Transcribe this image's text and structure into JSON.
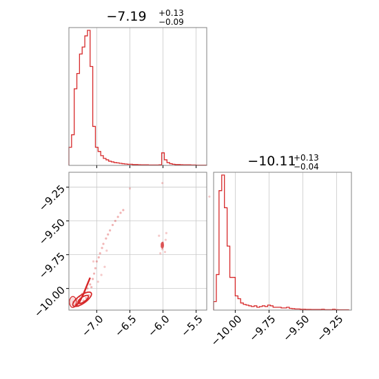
{
  "colors": {
    "series": "#d62728",
    "grid": "#c8c8c8",
    "frame": "#808080"
  },
  "chart_data": [
    {
      "type": "histogram",
      "panel": "marginal-param-1",
      "title": {
        "median": "−7.19",
        "plus": "+0.13",
        "minus": "−0.09"
      },
      "xlim": [
        -7.42,
        -5.34
      ],
      "grid": true,
      "bins": [
        [
          -7.42,
          0.13
        ],
        [
          -7.38,
          0.22
        ],
        [
          -7.34,
          0.55
        ],
        [
          -7.3,
          0.66
        ],
        [
          -7.26,
          0.8
        ],
        [
          -7.22,
          0.85
        ],
        [
          -7.18,
          0.93
        ],
        [
          -7.14,
          0.97
        ],
        [
          -7.1,
          0.71
        ],
        [
          -7.06,
          0.28
        ],
        [
          -7.02,
          0.13
        ],
        [
          -6.98,
          0.1
        ],
        [
          -6.94,
          0.07
        ],
        [
          -6.9,
          0.05
        ],
        [
          -6.86,
          0.04
        ],
        [
          -6.82,
          0.03
        ],
        [
          -6.78,
          0.025
        ],
        [
          -6.74,
          0.02
        ],
        [
          -6.7,
          0.018
        ],
        [
          -6.66,
          0.015
        ],
        [
          -6.62,
          0.012
        ],
        [
          -6.58,
          0.01
        ],
        [
          -6.54,
          0.008
        ],
        [
          -6.5,
          0.008
        ],
        [
          -6.46,
          0.006
        ],
        [
          -6.42,
          0.006
        ],
        [
          -6.38,
          0.005
        ],
        [
          -6.34,
          0.004
        ],
        [
          -6.3,
          0.004
        ],
        [
          -6.26,
          0.004
        ],
        [
          -6.22,
          0.003
        ],
        [
          -6.18,
          0.003
        ],
        [
          -6.14,
          0.003
        ],
        [
          -6.1,
          0.003
        ],
        [
          -6.06,
          0.004
        ],
        [
          -6.02,
          0.09
        ],
        [
          -5.98,
          0.04
        ],
        [
          -5.94,
          0.02
        ],
        [
          -5.9,
          0.012
        ],
        [
          -5.86,
          0.008
        ],
        [
          -5.82,
          0.006
        ],
        [
          -5.78,
          0.006
        ],
        [
          -5.74,
          0.005
        ],
        [
          -5.7,
          0.004
        ],
        [
          -5.66,
          0.004
        ],
        [
          -5.62,
          0.004
        ],
        [
          -5.58,
          0.003
        ],
        [
          -5.54,
          0.003
        ],
        [
          -5.5,
          0.002
        ],
        [
          -5.46,
          0.002
        ],
        [
          -5.42,
          0.002
        ],
        [
          -5.38,
          0.002
        ]
      ]
    },
    {
      "type": "scatter",
      "panel": "joint-2d",
      "xlim": [
        -7.42,
        -5.34
      ],
      "ylim": [
        -10.16,
        -9.14
      ],
      "xticks": [
        -7.0,
        -6.5,
        -6.0,
        -5.5
      ],
      "xtick_labels": [
        "−7.0",
        "−6.5",
        "−6.0",
        "−5.5"
      ],
      "yticks": [
        -10.0,
        -9.75,
        -9.5,
        -9.25
      ],
      "ytick_labels": [
        "−10.00",
        "−9.75",
        "−9.50",
        "−9.25"
      ],
      "grid": true,
      "points": [
        [
          -7.35,
          -10.1
        ],
        [
          -7.32,
          -10.12
        ],
        [
          -7.3,
          -10.08
        ],
        [
          -7.28,
          -10.13
        ],
        [
          -7.26,
          -10.06
        ],
        [
          -7.24,
          -10.11
        ],
        [
          -7.22,
          -10.04
        ],
        [
          -7.2,
          -10.09
        ],
        [
          -7.18,
          -10.02
        ],
        [
          -7.16,
          -10.07
        ],
        [
          -7.14,
          -10.0
        ],
        [
          -7.12,
          -10.05
        ],
        [
          -7.1,
          -9.97
        ],
        [
          -7.08,
          -9.99
        ],
        [
          -7.06,
          -9.93
        ],
        [
          -7.04,
          -9.89
        ],
        [
          -7.02,
          -9.85
        ],
        [
          -7.0,
          -9.8
        ],
        [
          -6.97,
          -9.77
        ],
        [
          -6.95,
          -9.74
        ],
        [
          -6.92,
          -9.7
        ],
        [
          -6.9,
          -9.67
        ],
        [
          -6.86,
          -9.63
        ],
        [
          -6.83,
          -9.6
        ],
        [
          -6.8,
          -9.57
        ],
        [
          -6.76,
          -9.53
        ],
        [
          -6.72,
          -9.5
        ],
        [
          -6.68,
          -9.47
        ],
        [
          -6.64,
          -9.44
        ],
        [
          -6.6,
          -9.42
        ],
        [
          -6.98,
          -9.95
        ],
        [
          -6.93,
          -9.9
        ],
        [
          -7.05,
          -9.8
        ],
        [
          -6.88,
          -9.84
        ],
        [
          -6.85,
          -9.72
        ],
        [
          -6.02,
          -9.67
        ],
        [
          -6.01,
          -9.68
        ],
        [
          -6.02,
          -9.69
        ],
        [
          -6.0,
          -9.66
        ],
        [
          -6.01,
          -9.71
        ],
        [
          -5.97,
          -9.73
        ],
        [
          -5.96,
          -9.64
        ],
        [
          -6.04,
          -9.74
        ],
        [
          -5.95,
          -9.59
        ],
        [
          -6.06,
          -9.61
        ],
        [
          -5.3,
          -9.32
        ],
        [
          -6.5,
          -9.26
        ],
        [
          -6.01,
          -9.22
        ]
      ],
      "contour_centers": [
        -7.22,
        -10.08
      ]
    },
    {
      "type": "histogram",
      "panel": "marginal-param-2",
      "title": {
        "median": "−10.11",
        "plus": "+0.13",
        "minus": "−0.04"
      },
      "xlim": [
        -10.16,
        -9.14
      ],
      "xticks": [
        -10.0,
        -9.75,
        -9.5,
        -9.25
      ],
      "xtick_labels": [
        "−10.00",
        "−9.75",
        "−9.50",
        "−9.25"
      ],
      "grid": true,
      "bins": [
        [
          -10.16,
          0.06
        ],
        [
          -10.14,
          0.25
        ],
        [
          -10.12,
          0.84
        ],
        [
          -10.1,
          0.95
        ],
        [
          -10.08,
          0.72
        ],
        [
          -10.06,
          0.45
        ],
        [
          -10.04,
          0.23
        ],
        [
          -10.02,
          0.23
        ],
        [
          -10.0,
          0.1
        ],
        [
          -9.98,
          0.08
        ],
        [
          -9.96,
          0.05
        ],
        [
          -9.94,
          0.04
        ],
        [
          -9.92,
          0.035
        ],
        [
          -9.9,
          0.03
        ],
        [
          -9.88,
          0.025
        ],
        [
          -9.86,
          0.03
        ],
        [
          -9.84,
          0.02
        ],
        [
          -9.82,
          0.025
        ],
        [
          -9.8,
          0.03
        ],
        [
          -9.78,
          0.025
        ],
        [
          -9.76,
          0.035
        ],
        [
          -9.74,
          0.03
        ],
        [
          -9.72,
          0.02
        ],
        [
          -9.7,
          0.02
        ],
        [
          -9.68,
          0.02
        ],
        [
          -9.66,
          0.015
        ],
        [
          -9.64,
          0.015
        ],
        [
          -9.62,
          0.02
        ],
        [
          -9.6,
          0.012
        ],
        [
          -9.58,
          0.01
        ],
        [
          -9.56,
          0.008
        ],
        [
          -9.54,
          0.008
        ],
        [
          -9.52,
          0.006
        ],
        [
          -9.5,
          0.006
        ],
        [
          -9.48,
          0.005
        ],
        [
          -9.46,
          0.005
        ],
        [
          -9.44,
          0.004
        ],
        [
          -9.42,
          0.004
        ],
        [
          -9.4,
          0.004
        ],
        [
          -9.38,
          0.004
        ],
        [
          -9.36,
          0.006
        ],
        [
          -9.34,
          0.003
        ],
        [
          -9.32,
          0.003
        ],
        [
          -9.3,
          0.003
        ],
        [
          -9.28,
          0.006
        ],
        [
          -9.26,
          0.003
        ],
        [
          -9.24,
          0.002
        ],
        [
          -9.22,
          0.002
        ],
        [
          -9.2,
          0.002
        ],
        [
          -9.18,
          0.002
        ]
      ]
    }
  ]
}
